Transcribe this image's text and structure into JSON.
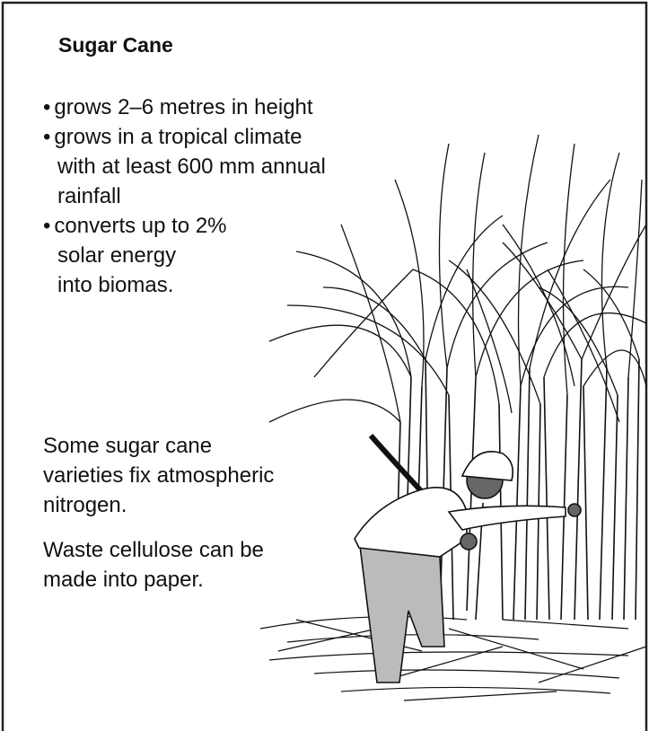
{
  "title": "Sugar Cane",
  "bullets": [
    [
      "grows 2–6 metres in height"
    ],
    [
      "grows in a tropical climate",
      "with at least 600 mm annual",
      "rainfall"
    ],
    [
      "converts up to 2%",
      "solar energy",
      "into biomas."
    ]
  ],
  "notes": [
    [
      "Some sugar cane",
      "varieties fix atmospheric",
      "nitrogen."
    ],
    [
      "Waste cellulose can be",
      "made into paper."
    ]
  ]
}
